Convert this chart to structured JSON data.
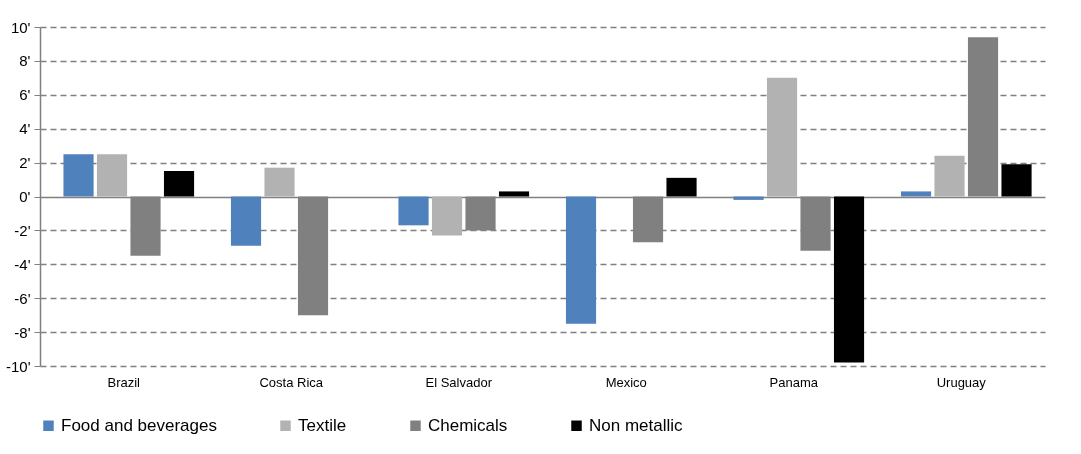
{
  "chart_data": {
    "type": "bar",
    "categories": [
      "Brazil",
      "Costa Rica",
      "El Salvador",
      "Mexico",
      "Panama",
      "Uruguay"
    ],
    "series": [
      {
        "name": "Food and beverages",
        "color": "#4f81bd",
        "values": [
          2.5,
          -2.9,
          -1.7,
          -7.5,
          -0.2,
          0.3
        ]
      },
      {
        "name": "Textile",
        "color": "#b2b2b2",
        "values": [
          2.5,
          1.7,
          -2.3,
          null,
          7.0,
          2.4
        ]
      },
      {
        "name": "Chemicals",
        "color": "#808080",
        "values": [
          -3.5,
          -7.0,
          -2.0,
          -2.7,
          -3.2,
          9.4
        ]
      },
      {
        "name": "Non metallic",
        "color": "#000000",
        "values": [
          1.5,
          null,
          0.3,
          1.1,
          -9.8,
          1.9
        ]
      }
    ],
    "ylim": [
      -10,
      10
    ],
    "yticks": [
      {
        "value": -10,
        "label": "-10'"
      },
      {
        "value": -8,
        "label": "-8'"
      },
      {
        "value": -6,
        "label": "-6'"
      },
      {
        "value": -4,
        "label": "-4'"
      },
      {
        "value": -2,
        "label": "-2'"
      },
      {
        "value": 0,
        "label": "0'"
      },
      {
        "value": 2,
        "label": "2'"
      },
      {
        "value": 4,
        "label": "4'"
      },
      {
        "value": 6,
        "label": "6'"
      },
      {
        "value": 8,
        "label": "8'"
      },
      {
        "value": 10,
        "label": "10'"
      }
    ],
    "grid": "y",
    "legend": "bottom"
  }
}
